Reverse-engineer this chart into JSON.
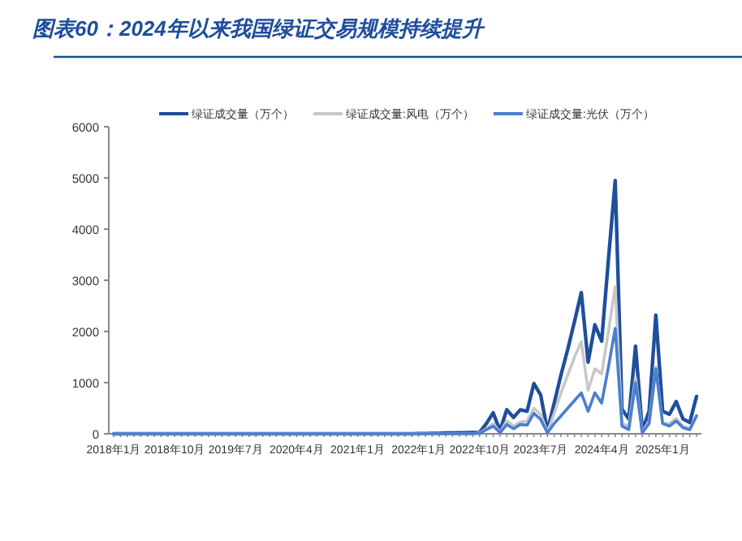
{
  "chart_data": {
    "type": "line",
    "title": "图表60：2024年以来我国绿证交易规模持续提升",
    "categories": [
      "2018年1月",
      null,
      null,
      null,
      null,
      null,
      null,
      null,
      null,
      "2018年10月",
      null,
      null,
      null,
      null,
      null,
      null,
      null,
      null,
      "2019年7月",
      null,
      null,
      null,
      null,
      null,
      null,
      null,
      null,
      "2020年4月",
      null,
      null,
      null,
      null,
      null,
      null,
      null,
      null,
      "2021年1月",
      null,
      null,
      null,
      null,
      null,
      null,
      null,
      null,
      "2022年1月",
      null,
      null,
      null,
      null,
      null,
      null,
      null,
      null,
      "2022年10月",
      null,
      null,
      null,
      null,
      null,
      null,
      null,
      null,
      "2023年7月",
      null,
      null,
      null,
      null,
      null,
      null,
      null,
      null,
      "2024年4月",
      null,
      null,
      null,
      null,
      null,
      null,
      null,
      null,
      "2025年1月",
      null,
      null,
      null,
      null,
      null
    ],
    "series": [
      {
        "name": "绿证成交量（万个）",
        "color": "#1f4e9c",
        "values": [
          0,
          0,
          0,
          0,
          0,
          0,
          0,
          0,
          0,
          0,
          0,
          0,
          0,
          0,
          0,
          0,
          0,
          0,
          0,
          0,
          0,
          0,
          0,
          0,
          0,
          0,
          0,
          0,
          0,
          0,
          0,
          0,
          0,
          0,
          0,
          0,
          0,
          0,
          0,
          0,
          0,
          0,
          0,
          0,
          0,
          5,
          5,
          10,
          10,
          15,
          15,
          20,
          20,
          25,
          30,
          200,
          410,
          60,
          470,
          320,
          470,
          440,
          980,
          760,
          60,
          600,
          1150,
          1650,
          2200,
          2760,
          1400,
          2130,
          1810,
          3400,
          4950,
          480,
          290,
          1710,
          60,
          440,
          2320,
          440,
          380,
          630,
          290,
          220,
          730
        ]
      },
      {
        "name": "绿证成交量:风电（万个）",
        "color": "#c8c8c8",
        "values": [
          0,
          0,
          0,
          0,
          0,
          0,
          0,
          0,
          0,
          0,
          0,
          0,
          0,
          0,
          0,
          0,
          0,
          0,
          0,
          0,
          0,
          0,
          0,
          0,
          0,
          0,
          0,
          0,
          0,
          0,
          0,
          0,
          0,
          0,
          0,
          0,
          0,
          0,
          0,
          0,
          0,
          0,
          0,
          0,
          0,
          0,
          0,
          0,
          0,
          0,
          0,
          0,
          0,
          0,
          20,
          100,
          200,
          30,
          250,
          150,
          230,
          250,
          500,
          380,
          30,
          400,
          800,
          1150,
          1500,
          1800,
          850,
          1270,
          1170,
          2000,
          2870,
          200,
          150,
          1100,
          30,
          250,
          1300,
          200,
          200,
          300,
          150,
          100,
          350
        ]
      },
      {
        "name": "绿证成交量:光伏（万个）",
        "color": "#4a7fcf",
        "values": [
          0,
          0,
          0,
          0,
          0,
          0,
          0,
          0,
          0,
          0,
          0,
          0,
          0,
          0,
          0,
          0,
          0,
          0,
          0,
          0,
          0,
          0,
          0,
          0,
          0,
          0,
          0,
          0,
          0,
          0,
          0,
          0,
          0,
          0,
          0,
          0,
          0,
          0,
          0,
          0,
          0,
          0,
          0,
          0,
          0,
          0,
          0,
          0,
          0,
          0,
          0,
          0,
          0,
          0,
          10,
          80,
          150,
          20,
          180,
          100,
          180,
          170,
          400,
          280,
          20,
          200,
          350,
          500,
          650,
          800,
          440,
          800,
          600,
          1300,
          2060,
          150,
          80,
          1000,
          20,
          200,
          1270,
          200,
          150,
          250,
          120,
          80,
          350
        ]
      }
    ],
    "ylim": [
      0,
      6000
    ],
    "yticks": [
      0,
      1000,
      2000,
      3000,
      4000,
      5000,
      6000
    ],
    "grid": false,
    "legend": "top",
    "marker": "none",
    "line_style": "solid"
  }
}
